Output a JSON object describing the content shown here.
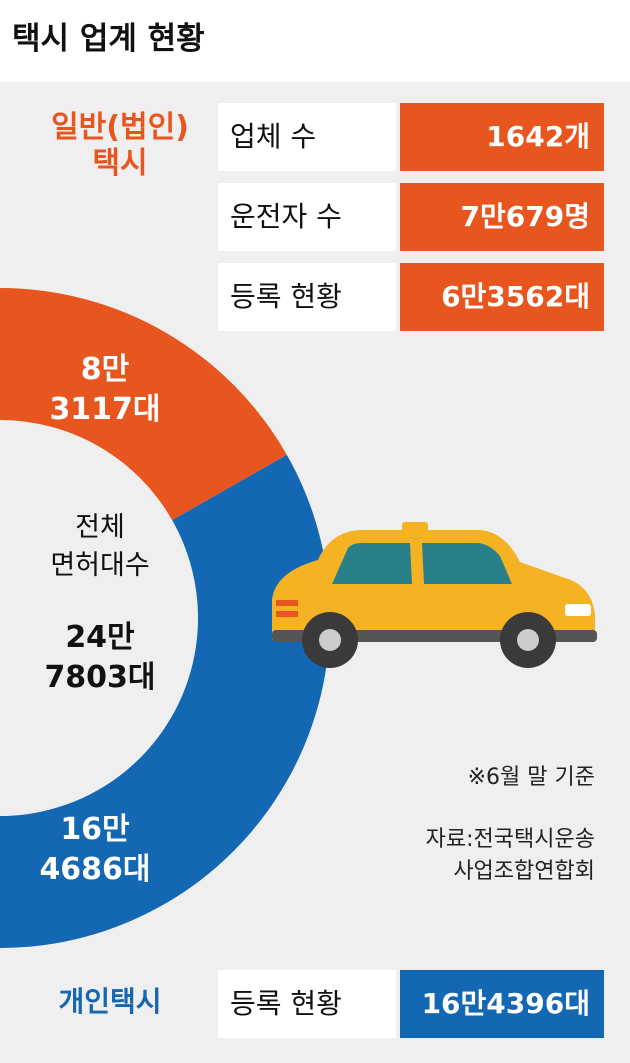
{
  "title": "택시 업계 현황",
  "corporate": {
    "title": "일반(법인)\n택시",
    "rows": [
      [
        "업체 수",
        "1642개"
      ],
      [
        "운전자 수",
        "7만679명"
      ],
      [
        "등록 현황",
        "6만3562대"
      ]
    ]
  },
  "personal": {
    "title": "개인택시",
    "rows": [
      [
        "등록 현황",
        "16만4396대"
      ]
    ]
  },
  "chart_data": {
    "type": "half-donut",
    "categories": [
      "일반(법인)택시",
      "개인택시"
    ],
    "values": [
      83117,
      164686
    ],
    "value_labels": [
      "8만\n3117대",
      "16만\n4686대"
    ],
    "colors": [
      "#e8561f",
      "#1467b3"
    ],
    "center_label": "전체\n면허대수",
    "total": 247803,
    "total_label": "24만\n7803대"
  },
  "note": "※6월 말 기준",
  "source": "자료:전국택시운송\n사업조합연합회"
}
